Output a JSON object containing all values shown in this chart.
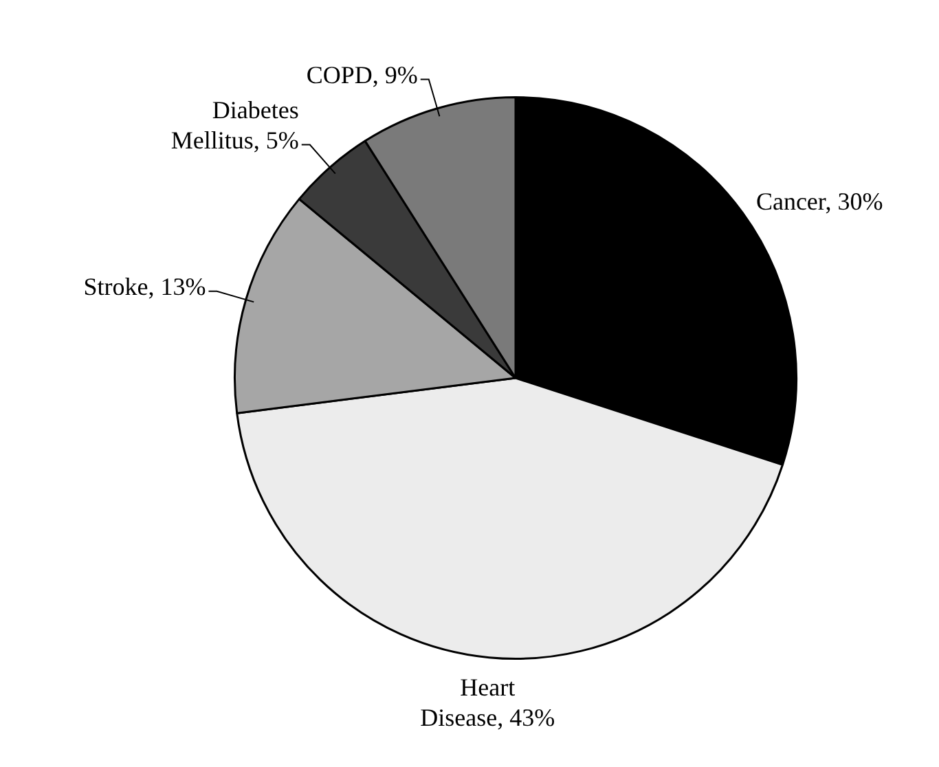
{
  "chart_data": {
    "type": "pie",
    "categories": [
      "Cancer",
      "Heart Disease",
      "Stroke",
      "Diabetes Mellitus",
      "COPD"
    ],
    "values": [
      30,
      43,
      13,
      5,
      9
    ],
    "value_labels": [
      "30%",
      "43%",
      "13%",
      "5%",
      "9%"
    ],
    "colors": [
      "#000000",
      "#ececec",
      "#a6a6a6",
      "#3a3a3a",
      "#7a7a7a"
    ],
    "legend": false
  }
}
